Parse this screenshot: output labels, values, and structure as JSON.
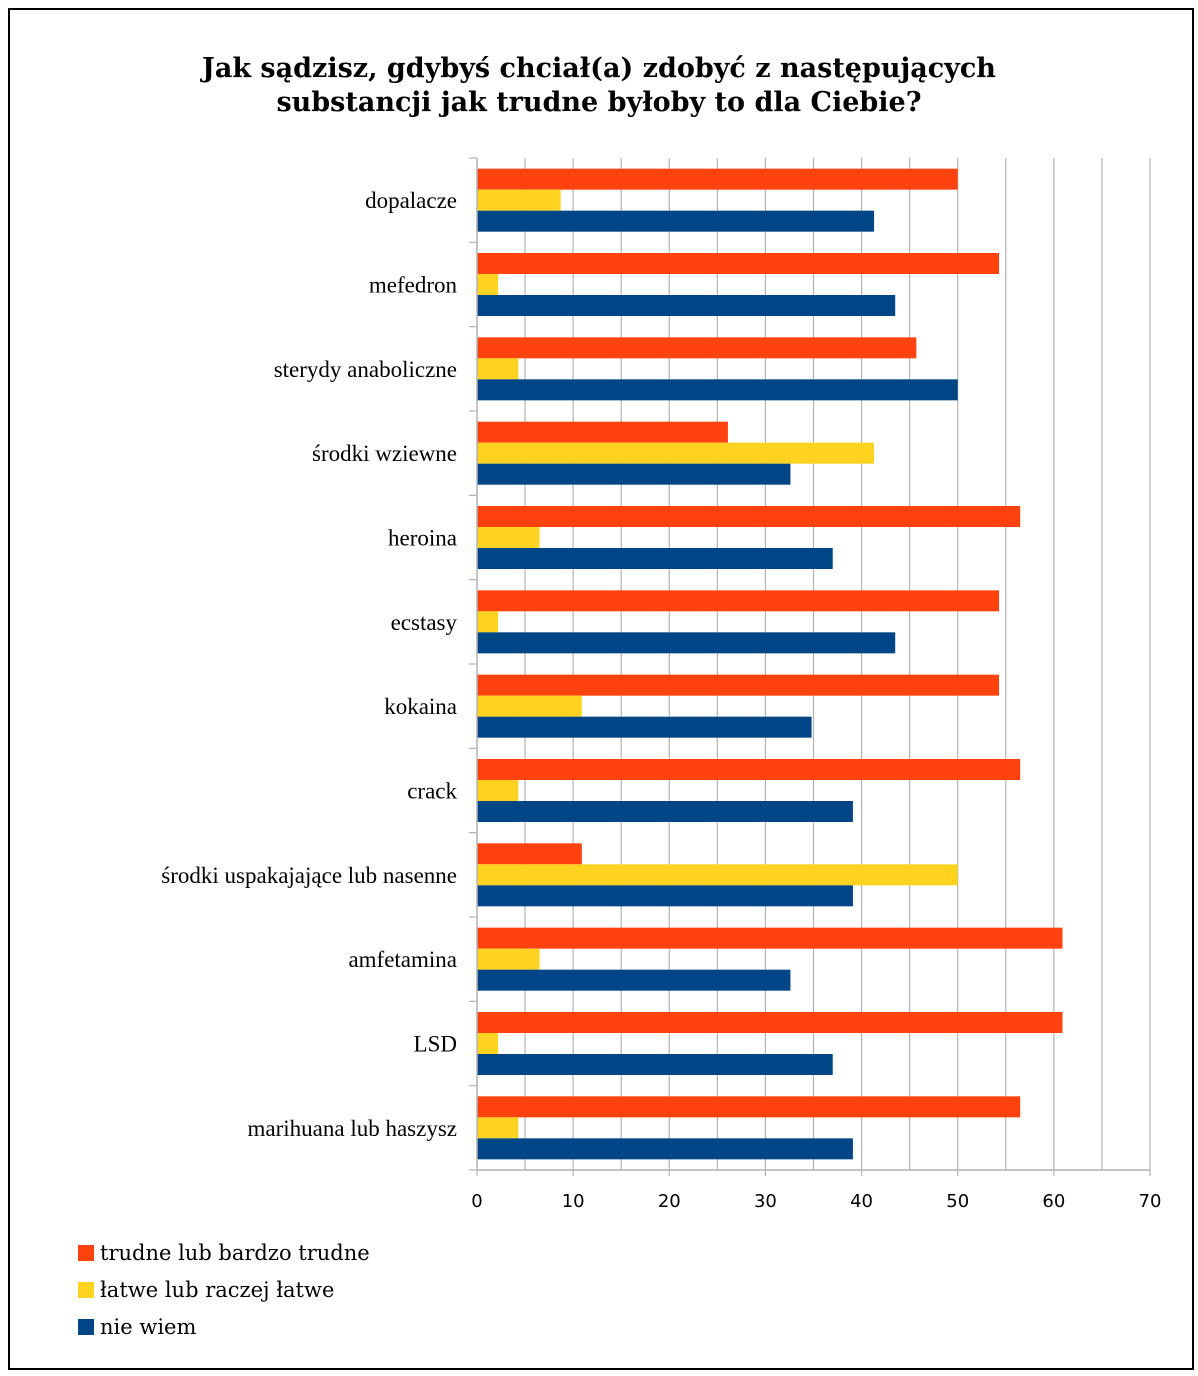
{
  "chart_data": {
    "type": "bar",
    "orientation": "horizontal",
    "title": "Jak sądzisz, gdybyś chciał(a) zdobyć z następujących substancji jak trudne byłoby to dla Ciebie?",
    "title_lines": [
      "Jak sądzisz, gdybyś chciał(a) zdobyć z następujących",
      "substancji jak trudne byłoby to dla Ciebie?"
    ],
    "categories": [
      "dopalacze",
      "mefedron",
      "sterydy anaboliczne",
      "środki wziewne",
      "heroina",
      "ecstasy",
      "kokaina",
      "crack",
      "środki uspakajające lub nasenne",
      "amfetamina",
      "LSD",
      "marihuana lub haszysz"
    ],
    "series": [
      {
        "name": "trudne lub bardzo trudne",
        "color": "#ff420e",
        "values": [
          50,
          54.3,
          45.7,
          26.1,
          56.5,
          54.3,
          54.3,
          56.5,
          10.9,
          60.9,
          60.9,
          56.5
        ]
      },
      {
        "name": "łatwe lub raczej łatwe",
        "color": "#ffd320",
        "values": [
          8.7,
          2.2,
          4.3,
          41.3,
          6.5,
          2.2,
          10.9,
          4.3,
          50,
          6.5,
          2.2,
          4.3
        ]
      },
      {
        "name": "nie wiem",
        "color": "#004586",
        "values": [
          41.3,
          43.5,
          50,
          32.6,
          37,
          43.5,
          34.8,
          39.1,
          39.1,
          32.6,
          37,
          39.1
        ]
      }
    ],
    "xlim": [
      0,
      70
    ],
    "x_ticks": [
      0,
      10,
      20,
      30,
      40,
      50,
      60,
      70
    ],
    "minor_grid_step": 5,
    "grid": true,
    "legend_position": "bottom-left"
  }
}
